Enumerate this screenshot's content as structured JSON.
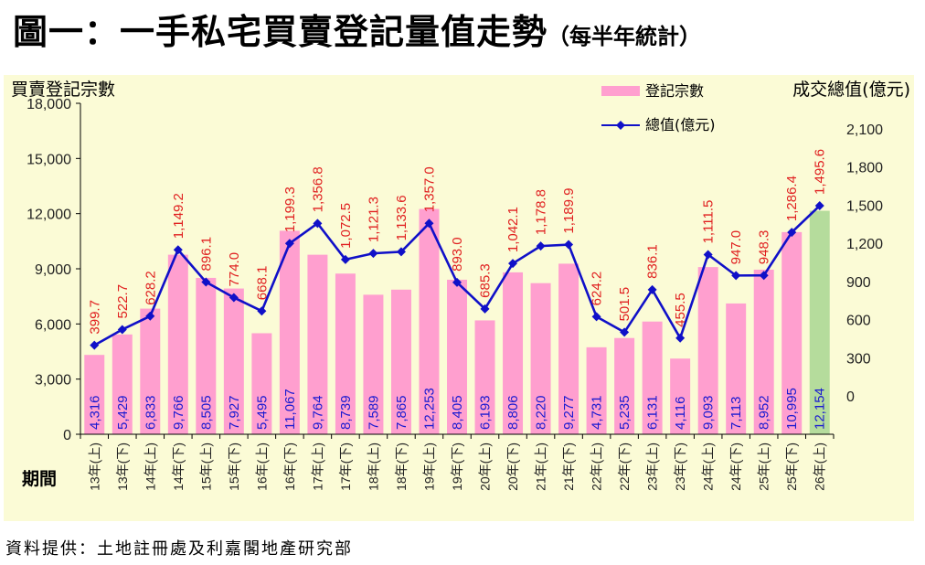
{
  "header": {
    "title": "圖一：一手私宅買賣登記量值走勢",
    "subtitle": "（每半年統計）"
  },
  "footer": {
    "source": "資料提供：土地註冊處及利嘉閣地產研究部"
  },
  "colors": {
    "plot_bg": "#fbfbd6",
    "bar": "#ff9fcf",
    "bar_last": "#b5dc9c",
    "line": "#1010c8",
    "label_red": "#e02020",
    "label_blue": "#1a1ad0"
  },
  "chart_data": {
    "type": "bar",
    "categories": [
      "13年(上)",
      "13年(下)",
      "14年(上)",
      "14年(下)",
      "15年(上)",
      "15年(下)",
      "16年(上)",
      "16年(下)",
      "17年(上)",
      "17年(下)",
      "18年(上)",
      "18年(下)",
      "19年(上)",
      "19年(下)",
      "20年(上)",
      "20年(下)",
      "21年(上)",
      "21年(下)",
      "22年(上)",
      "22年(下)",
      "23年(上)",
      "23年(下)",
      "24年(上)",
      "24年(下)",
      "25年(上)",
      "25年(下)",
      "26年(上)"
    ],
    "series": [
      {
        "name": "登記宗數",
        "type": "bar",
        "axis": "left",
        "values": [
          4316,
          5429,
          6833,
          9766,
          8505,
          7927,
          5495,
          11067,
          9764,
          8739,
          7589,
          7865,
          12253,
          8405,
          6193,
          8806,
          8220,
          9277,
          4731,
          5235,
          6131,
          4116,
          9093,
          7113,
          8952,
          10995,
          12154
        ],
        "labels": [
          "4,316",
          "5,429",
          "6,833",
          "9,766",
          "8,505",
          "7,927",
          "5,495",
          "11,067",
          "9,764",
          "8,739",
          "7,589",
          "7,865",
          "12,253",
          "8,405",
          "6,193",
          "8,806",
          "8,220",
          "9,277",
          "4,731",
          "5,235",
          "6,131",
          "4,116",
          "9,093",
          "7,113",
          "8,952",
          "10,995",
          "12,154"
        ]
      },
      {
        "name": "總值(億元)",
        "type": "line",
        "axis": "right",
        "values": [
          399.7,
          522.7,
          628.2,
          1149.2,
          896.1,
          774.0,
          668.1,
          1199.3,
          1356.8,
          1072.5,
          1121.3,
          1133.6,
          1357.0,
          893.0,
          685.3,
          1042.1,
          1178.8,
          1189.9,
          624.2,
          501.5,
          836.1,
          455.5,
          1111.5,
          947.0,
          948.3,
          1286.4,
          1495.6
        ],
        "labels": [
          "399.7",
          "522.7",
          "628.2",
          "1,149.2",
          "896.1",
          "774.0",
          "668.1",
          "1,199.3",
          "1,356.8",
          "1,072.5",
          "1,121.3",
          "1,133.6",
          "1,357.0",
          "893.0",
          "685.3",
          "1,042.1",
          "1,178.8",
          "1,189.9",
          "624.2",
          "501.5",
          "836.1",
          "455.5",
          "1,111.5",
          "947.0",
          "948.3",
          "1,286.4",
          "1,495.6"
        ]
      }
    ],
    "left_axis": {
      "label": "買賣登記宗數",
      "min": 0,
      "max": 18000,
      "ticks": [
        0,
        3000,
        6000,
        9000,
        12000,
        15000,
        18000
      ],
      "tick_labels": [
        "0",
        "3,000",
        "6,000",
        "9,000",
        "12,000",
        "15,000",
        "18,000"
      ]
    },
    "right_axis": {
      "label": "成交總值(億元)",
      "min": -300,
      "max": 2300,
      "ticks": [
        0,
        300,
        600,
        900,
        1200,
        1500,
        1800,
        2100
      ],
      "tick_labels": [
        "0",
        "300",
        "600",
        "900",
        "1,200",
        "1,500",
        "1,800",
        "2,100"
      ]
    },
    "x_axis_label": "期間",
    "grid": false,
    "legend_position": "top-right",
    "highlight_last_bar": true
  }
}
